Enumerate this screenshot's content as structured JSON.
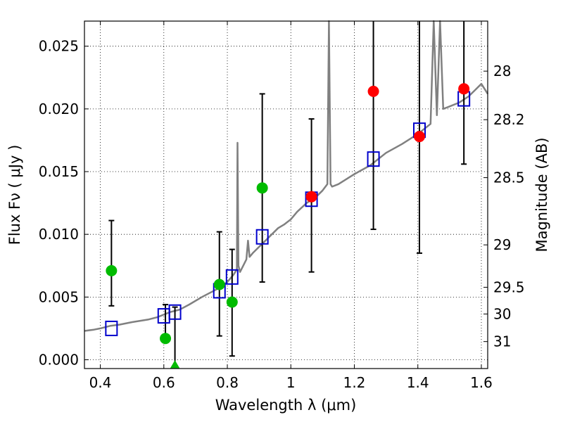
{
  "chart_data": {
    "type": "scatter",
    "xlabel": "Wavelength  λ (μm)",
    "ylabel": "Flux  Fν  ( μJy )",
    "y2label": "Magnitude (AB)",
    "xlim": [
      0.35,
      1.62
    ],
    "ylim": [
      -0.0007,
      0.027
    ],
    "grid": true,
    "grid_style": "dotted",
    "x_ticks": [
      0.4,
      0.6,
      0.8,
      1.0,
      1.2,
      1.4,
      1.6
    ],
    "x_tick_labels": [
      "0.4",
      "0.6",
      "0.8",
      "1",
      "1.2",
      "1.4",
      "1.6"
    ],
    "y_ticks": [
      0.0,
      0.005,
      0.01,
      0.015,
      0.02,
      0.025
    ],
    "y_tick_labels": [
      "0.000",
      "0.005",
      "0.010",
      "0.015",
      "0.020",
      "0.025"
    ],
    "y2_ticks": [
      {
        "label": "28",
        "flux": 0.02301
      },
      {
        "label": "28.2",
        "flux": 0.01914
      },
      {
        "label": "28.5",
        "flux": 0.01452
      },
      {
        "label": "29",
        "flux": 0.00916
      },
      {
        "label": "29.5",
        "flux": 0.00578
      },
      {
        "label": "30",
        "flux": 0.00365
      },
      {
        "label": "31",
        "flux": 0.00145
      }
    ],
    "colors": {
      "model": "#808080",
      "model_points": "#0000cc",
      "green_points": "#00bb00",
      "red_points": "#ff0000",
      "errorbar": "#000000"
    },
    "model_spectrum": {
      "x": [
        0.35,
        0.38,
        0.4,
        0.43,
        0.46,
        0.5,
        0.55,
        0.58,
        0.6,
        0.62,
        0.65,
        0.68,
        0.72,
        0.75,
        0.78,
        0.8,
        0.82,
        0.83,
        0.832,
        0.835,
        0.84,
        0.85,
        0.86,
        0.865,
        0.87,
        0.88,
        0.9,
        0.92,
        0.94,
        0.96,
        0.98,
        1.0,
        1.02,
        1.05,
        1.08,
        1.1,
        1.115,
        1.12,
        1.125,
        1.13,
        1.15,
        1.2,
        1.25,
        1.3,
        1.35,
        1.4,
        1.44,
        1.45,
        1.46,
        1.47,
        1.48,
        1.5,
        1.53,
        1.56,
        1.58,
        1.6,
        1.62
      ],
      "y": [
        0.0023,
        0.0024,
        0.0025,
        0.0027,
        0.0028,
        0.003,
        0.0032,
        0.0034,
        0.0036,
        0.0038,
        0.004,
        0.0044,
        0.005,
        0.0054,
        0.0058,
        0.0062,
        0.0068,
        0.0072,
        0.0173,
        0.0075,
        0.007,
        0.0075,
        0.008,
        0.0095,
        0.0082,
        0.0085,
        0.009,
        0.0095,
        0.01,
        0.0105,
        0.0108,
        0.0112,
        0.0118,
        0.0125,
        0.013,
        0.0135,
        0.014,
        0.027,
        0.014,
        0.0138,
        0.014,
        0.0148,
        0.0155,
        0.0165,
        0.0172,
        0.018,
        0.0188,
        0.027,
        0.0195,
        0.027,
        0.02,
        0.0202,
        0.0205,
        0.021,
        0.0215,
        0.022,
        0.0212
      ]
    },
    "series": [
      {
        "marker": "square",
        "x": [
          0.435,
          0.6,
          0.635,
          0.775,
          0.815,
          0.91,
          1.065,
          1.26,
          1.405,
          1.545
        ],
        "values": [
          0.0025,
          0.0035,
          0.0038,
          0.0055,
          0.0066,
          0.0098,
          0.0128,
          0.016,
          0.0183,
          0.0208
        ]
      },
      {
        "marker": "circle",
        "x": [
          0.435,
          0.605,
          0.775,
          0.815,
          0.91
        ],
        "values": [
          0.0071,
          0.0017,
          0.006,
          0.0046,
          0.0137
        ],
        "yerr_low": [
          0.0043,
          0.0017,
          0.0019,
          0.0003,
          0.0062
        ],
        "yerr_high": [
          0.0111,
          0.0044,
          0.0102,
          0.0088,
          0.0212
        ]
      },
      {
        "marker": "circle",
        "x": [
          1.065,
          1.26,
          1.405,
          1.545
        ],
        "values": [
          0.013,
          0.0214,
          0.0178,
          0.0216
        ],
        "yerr_low": [
          0.007,
          0.0104,
          0.0085,
          0.0156
        ],
        "yerr_high": [
          0.0192,
          0.027,
          0.027,
          0.027
        ]
      },
      {
        "marker": "triangle",
        "x": [
          0.635
        ],
        "values": [
          0.0
        ],
        "yerr_low": [
          -0.0007
        ],
        "yerr_high": [
          0.0042
        ]
      }
    ]
  }
}
